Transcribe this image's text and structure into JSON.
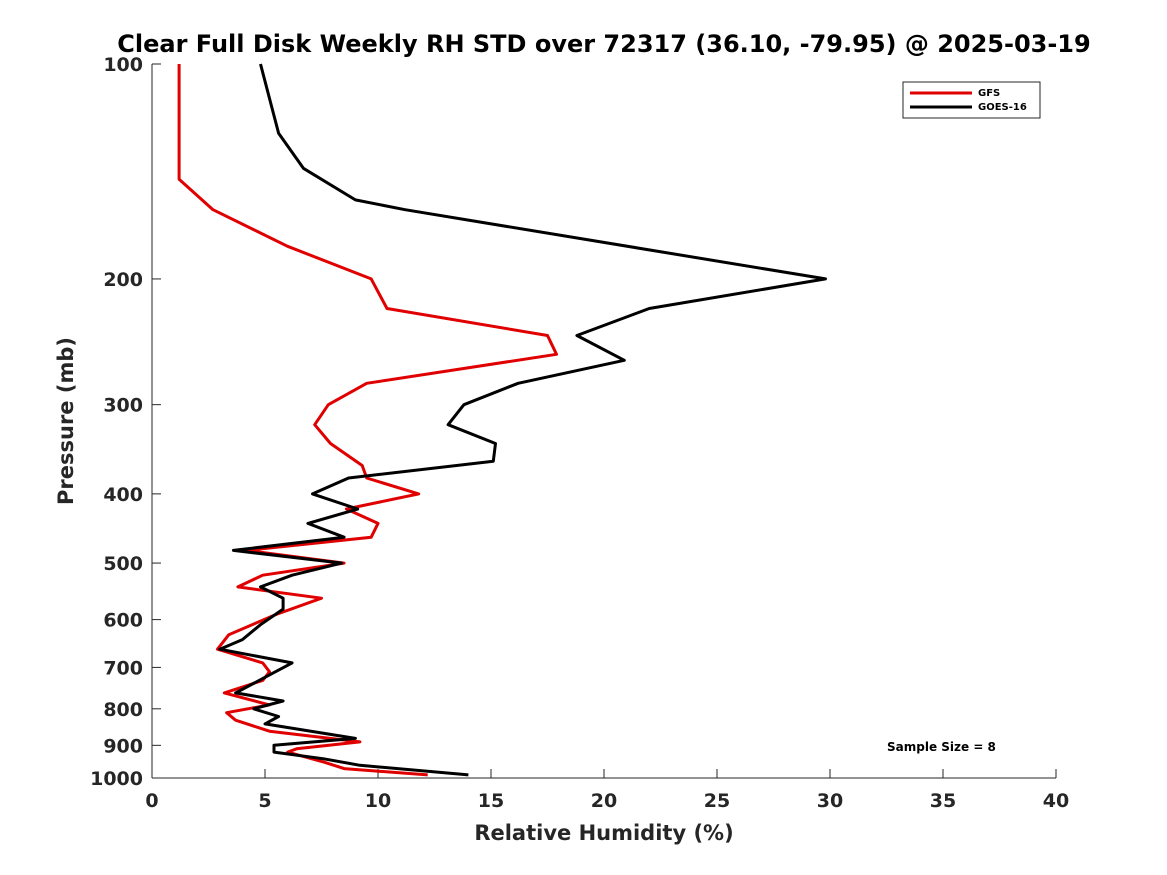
{
  "chart_data": {
    "type": "line",
    "title": "Clear Full Disk Weekly RH STD over 72317 (36.10, -79.95) @ 2025-03-19",
    "xlabel": "Relative Humidity (%)",
    "ylabel": "Pressure (mb)",
    "xlim": [
      0,
      40
    ],
    "ylim": [
      100,
      1000
    ],
    "y_scale": "log",
    "y_reversed": true,
    "x_ticks": [
      "0",
      "5",
      "10",
      "15",
      "20",
      "25",
      "30",
      "35",
      "40"
    ],
    "y_ticks": [
      "100",
      "200",
      "300",
      "400",
      "500",
      "600",
      "700",
      "800",
      "900",
      "1000"
    ],
    "grid": false,
    "legend_position": "top-right",
    "annotation": "Sample Size = 8",
    "series": [
      {
        "name": "GFS",
        "color": "#e00000",
        "points": [
          [
            1.2,
            100
          ],
          [
            1.2,
            115
          ],
          [
            1.2,
            125
          ],
          [
            1.2,
            135
          ],
          [
            1.2,
            145
          ],
          [
            2.7,
            160
          ],
          [
            6.0,
            180
          ],
          [
            9.7,
            200
          ],
          [
            10.4,
            220
          ],
          [
            17.5,
            240
          ],
          [
            17.9,
            255
          ],
          [
            9.5,
            280
          ],
          [
            7.8,
            300
          ],
          [
            7.2,
            320
          ],
          [
            7.9,
            340
          ],
          [
            9.3,
            365
          ],
          [
            9.5,
            380
          ],
          [
            11.8,
            400
          ],
          [
            8.6,
            420
          ],
          [
            10.0,
            440
          ],
          [
            9.7,
            460
          ],
          [
            4.2,
            480
          ],
          [
            8.5,
            500
          ],
          [
            4.9,
            520
          ],
          [
            3.8,
            540
          ],
          [
            7.5,
            560
          ],
          [
            5.5,
            590
          ],
          [
            3.4,
            630
          ],
          [
            2.9,
            660
          ],
          [
            4.9,
            690
          ],
          [
            5.2,
            710
          ],
          [
            4.9,
            730
          ],
          [
            3.2,
            760
          ],
          [
            5.2,
            790
          ],
          [
            3.3,
            810
          ],
          [
            3.7,
            830
          ],
          [
            5.2,
            860
          ],
          [
            9.2,
            890
          ],
          [
            6.4,
            910
          ],
          [
            6.0,
            920
          ],
          [
            7.6,
            950
          ],
          [
            8.5,
            970
          ],
          [
            12.2,
            990
          ]
        ]
      },
      {
        "name": "GOES-16",
        "color": "#000000",
        "points": [
          [
            4.8,
            100
          ],
          [
            5.3,
            115
          ],
          [
            5.6,
            125
          ],
          [
            6.7,
            140
          ],
          [
            9.0,
            155
          ],
          [
            11.2,
            160
          ],
          [
            29.8,
            200
          ],
          [
            22.0,
            220
          ],
          [
            18.8,
            240
          ],
          [
            20.9,
            260
          ],
          [
            16.2,
            280
          ],
          [
            13.8,
            300
          ],
          [
            13.1,
            320
          ],
          [
            15.2,
            340
          ],
          [
            15.1,
            360
          ],
          [
            8.7,
            380
          ],
          [
            7.1,
            400
          ],
          [
            9.1,
            420
          ],
          [
            6.9,
            440
          ],
          [
            8.5,
            460
          ],
          [
            3.6,
            480
          ],
          [
            8.4,
            500
          ],
          [
            6.2,
            520
          ],
          [
            4.8,
            540
          ],
          [
            5.8,
            560
          ],
          [
            5.8,
            580
          ],
          [
            4.8,
            610
          ],
          [
            4.0,
            640
          ],
          [
            3.0,
            660
          ],
          [
            6.2,
            690
          ],
          [
            5.1,
            720
          ],
          [
            3.7,
            760
          ],
          [
            5.8,
            780
          ],
          [
            4.5,
            800
          ],
          [
            5.6,
            820
          ],
          [
            5.0,
            840
          ],
          [
            9.0,
            880
          ],
          [
            5.4,
            900
          ],
          [
            5.4,
            920
          ],
          [
            7.6,
            940
          ],
          [
            9.2,
            960
          ],
          [
            14.0,
            990
          ]
        ]
      }
    ]
  }
}
